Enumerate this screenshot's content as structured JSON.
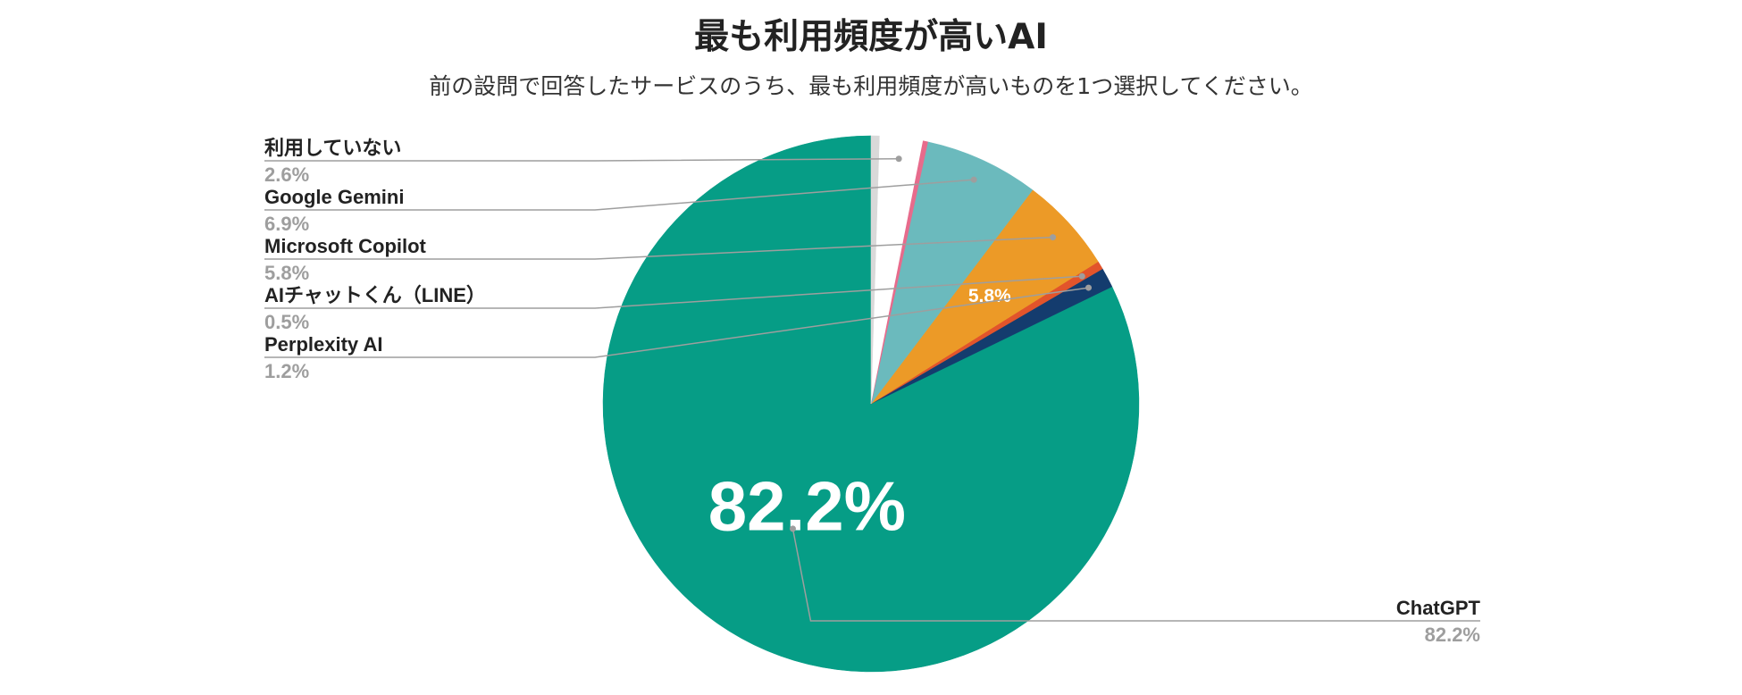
{
  "chart_data": {
    "type": "pie",
    "title": "最も利用頻度が高いAI",
    "subtitle": "前の設問で回答したサービスのうち、最も利用頻度が高いものを1つ選択してください。",
    "slices": [
      {
        "name": "ChatGPT",
        "value": 82.2,
        "label": "82.2%",
        "color": "#069d86",
        "inside_label": "82.2%"
      },
      {
        "name": "Perplexity AI",
        "value": 1.2,
        "label": "1.2%",
        "color": "#143c6e",
        "inside_label": ""
      },
      {
        "name": "AIチャットくん（LINE）",
        "value": 0.5,
        "label": "0.5%",
        "color": "#e2542b",
        "inside_label": ""
      },
      {
        "name": "Microsoft Copilot",
        "value": 5.8,
        "label": "5.8%",
        "color": "#ec9a27",
        "inside_label": "5.8%"
      },
      {
        "name": "Google Gemini",
        "value": 6.9,
        "label": "6.9%",
        "color": "#6bbabd",
        "inside_label": ""
      },
      {
        "name": "",
        "value": 0.3,
        "label": "",
        "color": "#e76b8c",
        "inside_label": ""
      },
      {
        "name": "利用していない",
        "value": 2.6,
        "label": "2.6%",
        "color": "#ffffff",
        "inside_label": ""
      },
      {
        "name": "",
        "value": 0.5,
        "label": "",
        "color": "#d9d9d9",
        "inside_label": ""
      }
    ],
    "start": "12 o'clock",
    "direction": "counterclockwise",
    "legend": "external callout labels"
  }
}
